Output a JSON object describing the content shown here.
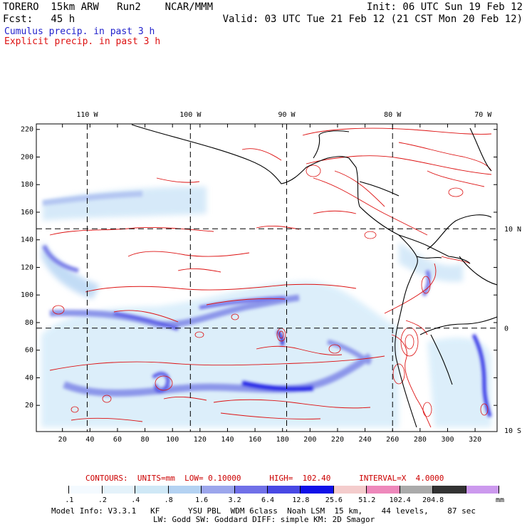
{
  "header": {
    "model_line": "TORERO  15km ARW   Run2    NCAR/MMM",
    "init_line": "Init: 06 UTC Sun 19 Feb 12",
    "fcst_line": "Fcst:   45 h",
    "valid_line": "Valid: 03 UTC Tue 21 Feb 12 (21 CST Mon 20 Feb 12)"
  },
  "legend": {
    "cumulus": {
      "label": "Cumulus precip. in past 3 h",
      "color": "#2222cc"
    },
    "explicit": {
      "label": "Explicit precip. in past 3 h",
      "color": "#dd1111"
    }
  },
  "map": {
    "lon_labels": [
      {
        "text": "110 W",
        "x": 38
      },
      {
        "text": "100 W",
        "x": 113
      },
      {
        "text": "90 W",
        "x": 183
      },
      {
        "text": "80 W",
        "x": 260
      },
      {
        "text": "70 W",
        "x": 332
      }
    ],
    "lat_labels": [
      {
        "text": "10 N",
        "y": 148
      },
      {
        "text": "0",
        "y": 76
      },
      {
        "text": "10 S",
        "y": 2
      }
    ],
    "y_ticks": [
      20,
      40,
      60,
      80,
      100,
      120,
      140,
      160,
      180,
      200,
      220
    ],
    "x_ticks": [
      20,
      40,
      60,
      80,
      100,
      120,
      140,
      160,
      180,
      200,
      220,
      240,
      260,
      280,
      300,
      320
    ],
    "grid_x": [
      38,
      113,
      183,
      260
    ],
    "grid_y": [
      76,
      148
    ],
    "x_range": [
      1,
      336
    ],
    "y_range": [
      1,
      224
    ]
  },
  "contours_line": {
    "label": "CONTOURS:  UNITS=mm  LOW= 0.10000      HIGH=  102.40      INTERVAL=X  4.0000",
    "color": "#cc0000"
  },
  "colorbar": {
    "colors": [
      "#ffffff",
      "#f4faff",
      "#e4f2fa",
      "#cfe8f6",
      "#b4d2f2",
      "#9ca6ec",
      "#7070e8",
      "#4848e4",
      "#1010e8",
      "#f4cccc",
      "#ee88bb",
      "#aaaaaa",
      "#333333",
      "#cc99ee"
    ],
    "labels": [
      ".1",
      ".2",
      ".4",
      ".8",
      "1.6",
      "3.2",
      "6.4",
      "12.8",
      "25.6",
      "51.2",
      "102.4",
      "204.8"
    ],
    "unit": "mm"
  },
  "footer": {
    "line1": "Model Info: V3.3.1   KF      YSU PBL  WDM 6class  Noah LSM  15 km,    44 levels,    87 sec",
    "line2": "LW: Godd SW: Goddard DIFF: simple KM: 2D Smagor"
  }
}
